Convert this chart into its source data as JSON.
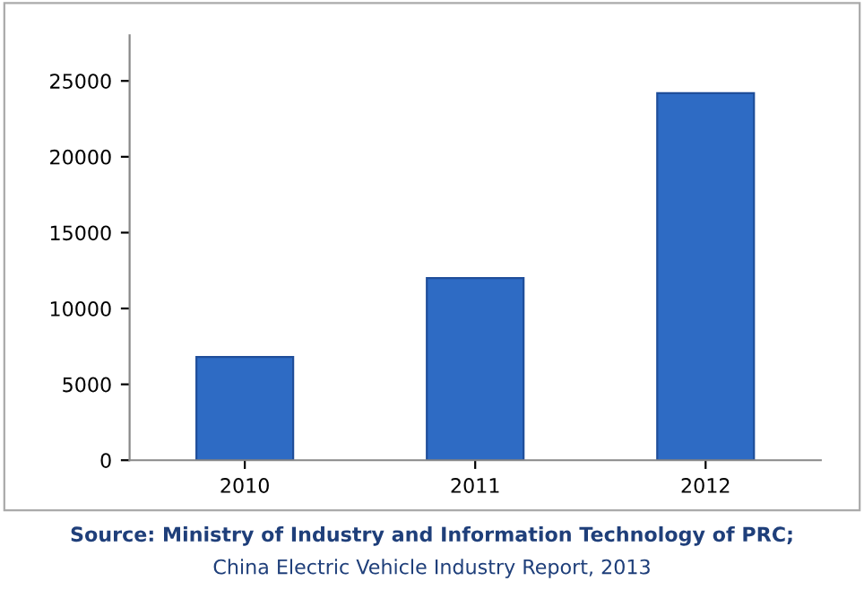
{
  "chart_data": {
    "type": "bar",
    "categories": [
      "2010",
      "2011",
      "2012"
    ],
    "values": [
      6800,
      12000,
      24200
    ],
    "color": "#2e6bc4",
    "ylim": [
      0,
      28000
    ],
    "yticks": [
      0,
      5000,
      10000,
      15000,
      20000,
      25000
    ],
    "grid": false,
    "annotations": [
      "Source: Ministry of Industry and Information Technology of PRC;",
      "China Electric Vehicle Industry Report, 2013"
    ]
  }
}
